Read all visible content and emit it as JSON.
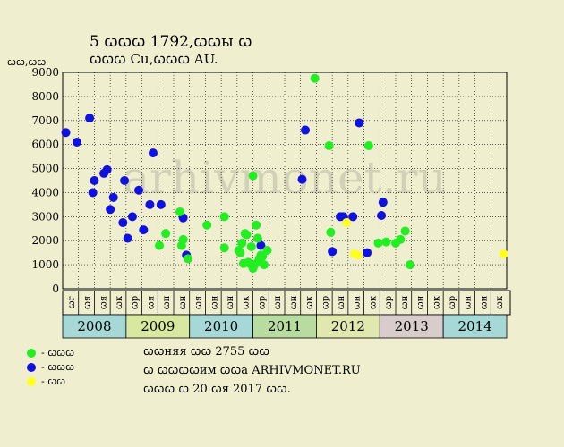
{
  "header": {
    "title_line1": "5 ꞷꞷꞷ 1792,ꞷꞷы ꞷ",
    "title_line2": "ꞷꞷꞷ Cu,ꞷꞷꞷ AU.",
    "y_unit": "ꞷꞷ,ꞷꞷ"
  },
  "watermark": "arhivmonet.ru",
  "legend": [
    {
      "label": "- ꞷꞷꞷ",
      "color": "#22ee22"
    },
    {
      "label": "- ꞷꞷꞷ",
      "color": "#1111dd"
    },
    {
      "label": "- ꞷꞷ",
      "color": "#ffff22"
    }
  ],
  "notes": [
    "ꞷꞷняя ꞷꞷ 2755 ꞷꞷ",
    "ꞷ ꞷꞷꞷꞷим ꞷꞷа ARHIVMONET.RU",
    "ꞷꞷꞷ ꞷ 20 ꞷя 2017 ꞷꞷ."
  ],
  "chart_data": {
    "type": "scatter",
    "ylabel": "ꞷꞷ,ꞷꞷ",
    "ylim": [
      0,
      9000
    ],
    "yticks": [
      0,
      1000,
      2000,
      3000,
      4000,
      5000,
      6000,
      7000,
      8000,
      9000
    ],
    "grid": true,
    "xlim": [
      0,
      28
    ],
    "month_labels": [
      "ꞷr",
      "ꞷя",
      "ꞷя",
      "ꞷк",
      "ꞷр",
      "ꞷя",
      "ꞷн",
      "ꞷн",
      "ꞷя",
      "ꞷн",
      "ꞷн",
      "ꞷк",
      "ꞷр",
      "ꞷн",
      "ꞷн",
      "ꞷк",
      "ꞷр",
      "ꞷн",
      "ꞷн",
      "ꞷк",
      "ꞷр",
      "ꞷн",
      "ꞷн",
      "ꞷк",
      "ꞷр",
      "ꞷн",
      "ꞷн",
      "ꞷк"
    ],
    "years": [
      {
        "label": "2008",
        "color": "#a6d8d8"
      },
      {
        "label": "2009",
        "color": "#d8e8a0"
      },
      {
        "label": "2010",
        "color": "#a6d8d8"
      },
      {
        "label": "2011",
        "color": "#b8dca0"
      },
      {
        "label": "2012",
        "color": "#e0e8b0"
      },
      {
        "label": "2013",
        "color": "#d8cccc"
      },
      {
        "label": "2014",
        "color": "#a6d8d8"
      }
    ],
    "series": [
      {
        "color": "#1111dd",
        "points": [
          [
            0.2,
            6500
          ],
          [
            0.9,
            6100
          ],
          [
            1.7,
            7100
          ],
          [
            1.9,
            4000
          ],
          [
            2.0,
            4500
          ],
          [
            2.6,
            4800
          ],
          [
            2.8,
            4950
          ],
          [
            3.0,
            3300
          ],
          [
            3.2,
            3800
          ],
          [
            3.8,
            2750
          ],
          [
            3.9,
            4500
          ],
          [
            4.1,
            2100
          ],
          [
            4.4,
            3000
          ],
          [
            4.8,
            4100
          ],
          [
            5.1,
            2450
          ],
          [
            5.5,
            3500
          ],
          [
            5.7,
            5650
          ],
          [
            6.2,
            3500
          ],
          [
            7.6,
            2950
          ],
          [
            7.8,
            1400
          ],
          [
            12.5,
            1800
          ],
          [
            15.1,
            4550
          ],
          [
            15.3,
            6600
          ],
          [
            17.0,
            1550
          ],
          [
            17.5,
            3000
          ],
          [
            17.7,
            3000
          ],
          [
            18.3,
            3000
          ],
          [
            18.7,
            6900
          ],
          [
            19.2,
            1500
          ],
          [
            20.1,
            3050
          ],
          [
            20.2,
            3600
          ]
        ]
      },
      {
        "color": "#22ee22",
        "points": [
          [
            6.1,
            1800
          ],
          [
            6.5,
            2300
          ],
          [
            7.4,
            3200
          ],
          [
            7.5,
            1800
          ],
          [
            7.6,
            2050
          ],
          [
            7.9,
            1250
          ],
          [
            9.1,
            2650
          ],
          [
            10.2,
            1700
          ],
          [
            10.2,
            3000
          ],
          [
            11.1,
            1600
          ],
          [
            11.2,
            1500
          ],
          [
            11.3,
            1900
          ],
          [
            11.4,
            1050
          ],
          [
            11.5,
            2300
          ],
          [
            11.6,
            2250
          ],
          [
            11.7,
            1100
          ],
          [
            11.8,
            1050
          ],
          [
            11.9,
            1750
          ],
          [
            12.0,
            4700
          ],
          [
            12.0,
            850
          ],
          [
            12.1,
            1000
          ],
          [
            12.2,
            2650
          ],
          [
            12.3,
            2100
          ],
          [
            12.4,
            1250
          ],
          [
            12.5,
            1400
          ],
          [
            12.6,
            1350
          ],
          [
            12.7,
            1000
          ],
          [
            12.9,
            1600
          ],
          [
            12.3,
            1100
          ],
          [
            15.9,
            8750
          ],
          [
            16.8,
            5950
          ],
          [
            16.9,
            2350
          ],
          [
            19.3,
            5950
          ],
          [
            19.9,
            1900
          ],
          [
            20.4,
            1950
          ],
          [
            21.0,
            1900
          ],
          [
            21.3,
            2050
          ],
          [
            21.6,
            2400
          ],
          [
            21.9,
            1000
          ]
        ]
      },
      {
        "color": "#ffff22",
        "points": [
          [
            17.9,
            2750
          ],
          [
            18.4,
            1450
          ],
          [
            18.6,
            1400
          ],
          [
            27.8,
            1450
          ]
        ]
      }
    ]
  }
}
